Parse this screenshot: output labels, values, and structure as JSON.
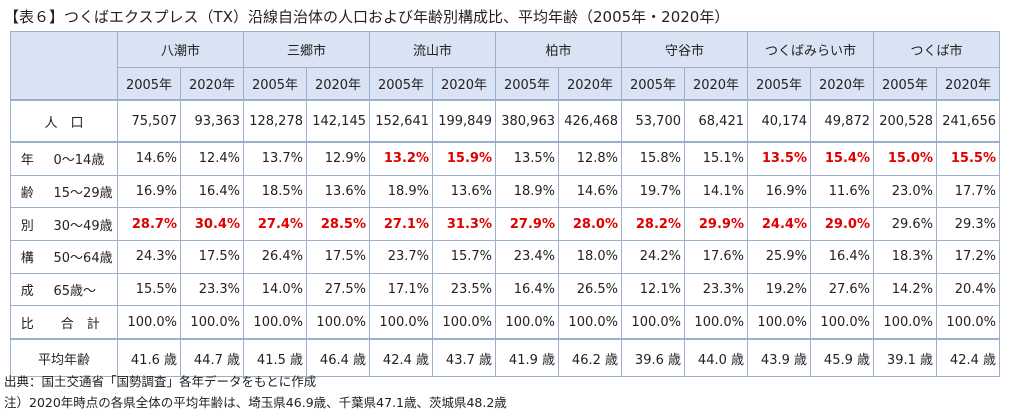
{
  "title": "【表６】つくばエクスプレス（TX）沿線自治体の人口および年齢別構成比、平均年齢（2005年・2020年）",
  "cities": [
    "八潮市",
    "三郷市",
    "流山市",
    "柏市",
    "守谷市",
    "つくばみらい市",
    "つくば市"
  ],
  "years": [
    "2005年",
    "2020年"
  ],
  "population": {
    "label": "人　口",
    "values": [
      "75,507",
      "93,363",
      "128,278",
      "142,145",
      "152,641",
      "199,849",
      "380,963",
      "426,468",
      "53,700",
      "68,421",
      "40,174",
      "49,872",
      "200,528",
      "241,656"
    ]
  },
  "age_rows": [
    {
      "char": "年",
      "label": "0〜14歳",
      "values": [
        "14.6%",
        "12.4%",
        "13.7%",
        "12.9%",
        "13.2%",
        "15.9%",
        "13.5%",
        "12.8%",
        "15.8%",
        "15.1%",
        "13.5%",
        "15.4%",
        "15.0%",
        "15.5%"
      ],
      "highlight": [
        false,
        false,
        false,
        false,
        true,
        true,
        false,
        false,
        false,
        false,
        true,
        true,
        true,
        true
      ]
    },
    {
      "char": "齢",
      "label": "15〜29歳",
      "values": [
        "16.9%",
        "16.4%",
        "18.5%",
        "13.6%",
        "18.9%",
        "13.6%",
        "18.9%",
        "14.6%",
        "19.7%",
        "14.1%",
        "16.9%",
        "11.6%",
        "23.0%",
        "17.7%"
      ],
      "highlight": [
        false,
        false,
        false,
        false,
        false,
        false,
        false,
        false,
        false,
        false,
        false,
        false,
        false,
        false
      ]
    },
    {
      "char": "別",
      "label": "30〜49歳",
      "values": [
        "28.7%",
        "30.4%",
        "27.4%",
        "28.5%",
        "27.1%",
        "31.3%",
        "27.9%",
        "28.0%",
        "28.2%",
        "29.9%",
        "24.4%",
        "29.0%",
        "29.6%",
        "29.3%"
      ],
      "highlight": [
        true,
        true,
        true,
        true,
        true,
        true,
        true,
        true,
        true,
        true,
        true,
        true,
        false,
        false
      ]
    },
    {
      "char": "構",
      "label": "50〜64歳",
      "values": [
        "24.3%",
        "17.5%",
        "26.4%",
        "17.5%",
        "23.7%",
        "15.7%",
        "23.4%",
        "18.0%",
        "24.2%",
        "17.6%",
        "25.9%",
        "16.4%",
        "18.3%",
        "17.2%"
      ],
      "highlight": [
        false,
        false,
        false,
        false,
        false,
        false,
        false,
        false,
        false,
        false,
        false,
        false,
        false,
        false
      ]
    },
    {
      "char": "成",
      "label": "65歳〜",
      "values": [
        "15.5%",
        "23.3%",
        "14.0%",
        "27.5%",
        "17.1%",
        "23.5%",
        "16.4%",
        "26.5%",
        "12.1%",
        "23.3%",
        "19.2%",
        "27.6%",
        "14.2%",
        "20.4%"
      ],
      "highlight": [
        false,
        false,
        false,
        false,
        false,
        false,
        false,
        false,
        false,
        false,
        false,
        false,
        false,
        false
      ]
    },
    {
      "char": "比",
      "label": "合　計",
      "values": [
        "100.0%",
        "100.0%",
        "100.0%",
        "100.0%",
        "100.0%",
        "100.0%",
        "100.0%",
        "100.0%",
        "100.0%",
        "100.0%",
        "100.0%",
        "100.0%",
        "100.0%",
        "100.0%"
      ],
      "highlight": [
        false,
        false,
        false,
        false,
        false,
        false,
        false,
        false,
        false,
        false,
        false,
        false,
        false,
        false
      ],
      "center": true
    }
  ],
  "average_age": {
    "label": "平均年齢",
    "values": [
      "41.6 歳",
      "44.7 歳",
      "41.5 歳",
      "46.4 歳",
      "42.4 歳",
      "43.7 歳",
      "41.9 歳",
      "46.2 歳",
      "39.6 歳",
      "44.0 歳",
      "43.9 歳",
      "45.9 歳",
      "39.1 歳",
      "42.4 歳"
    ]
  },
  "notes": [
    "出典：国土交通省「国勢調査」各年データをもとに作成",
    "注）2020年時点の各県全体の平均年齢は、埼玉県46.9歳、千葉県47.1歳、茨城県48.2歳"
  ],
  "colors": {
    "header_bg": "#dae3f3",
    "border": "#9bb0cc",
    "highlight": "#e00000"
  }
}
